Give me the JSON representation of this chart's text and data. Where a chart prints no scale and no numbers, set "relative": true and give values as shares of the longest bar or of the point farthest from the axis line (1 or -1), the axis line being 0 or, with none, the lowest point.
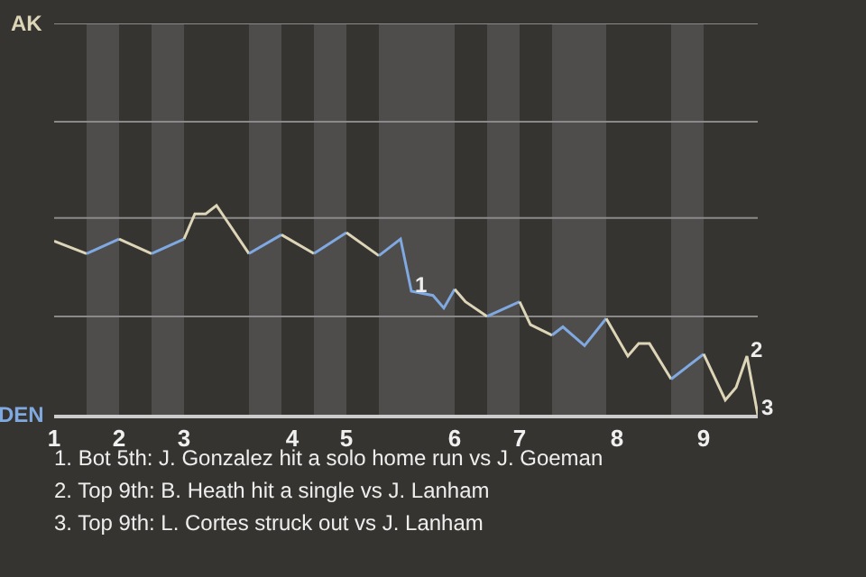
{
  "chart_data": {
    "type": "line",
    "relative": true,
    "marker": "none",
    "line_style": "solid",
    "categories": [
      "1",
      null,
      null,
      null,
      null,
      null,
      "2",
      null,
      null,
      null,
      null,
      null,
      "3",
      null,
      null,
      null,
      null,
      null,
      null,
      null,
      null,
      null,
      "4",
      null,
      null,
      null,
      null,
      "5",
      null,
      null,
      null,
      null,
      null,
      null,
      null,
      null,
      null,
      "6",
      null,
      null,
      null,
      null,
      null,
      "7",
      null,
      null,
      null,
      null,
      null,
      null,
      null,
      null,
      "8",
      null,
      null,
      null,
      null,
      null,
      null,
      null,
      "9",
      null,
      null,
      null,
      null,
      null
    ],
    "series": [
      {
        "color": "#ddd5b8",
        "values": [
          0.83,
          null,
          null,
          0.77,
          null,
          null,
          null,
          null,
          null,
          null,
          null,
          null,
          null,
          null,
          null,
          null,
          null,
          null,
          null,
          null,
          null,
          null,
          null,
          null,
          null,
          null,
          null,
          null,
          null,
          null,
          null,
          null,
          null,
          null,
          null,
          null,
          null,
          null,
          null,
          null,
          null,
          null,
          null,
          null,
          null,
          null,
          null,
          null,
          null,
          null,
          null,
          null,
          null,
          null,
          null,
          null,
          null,
          null,
          null,
          null,
          null,
          null,
          null,
          null,
          null,
          null
        ]
      },
      {
        "color": "#7fa9e0",
        "values": [
          null,
          null,
          null,
          0.77,
          null,
          null,
          0.84,
          null,
          null,
          null,
          null,
          null,
          null,
          null,
          null,
          null,
          null,
          null,
          null,
          null,
          null,
          null,
          null,
          null,
          null,
          null,
          null,
          null,
          null,
          null,
          null,
          null,
          null,
          null,
          null,
          null,
          null,
          null,
          null,
          null,
          null,
          null,
          null,
          null,
          null,
          null,
          null,
          null,
          null,
          null,
          null,
          null,
          null,
          null,
          null,
          null,
          null,
          null,
          null,
          null,
          null,
          null,
          null,
          null,
          null,
          null
        ]
      },
      {
        "color": "#ddd5b8",
        "values": [
          null,
          null,
          null,
          null,
          null,
          null,
          0.84,
          null,
          null,
          0.77,
          null,
          null,
          null,
          null,
          null,
          null,
          null,
          null,
          null,
          null,
          null,
          null,
          null,
          null,
          null,
          null,
          null,
          null,
          null,
          null,
          null,
          null,
          null,
          null,
          null,
          null,
          null,
          null,
          null,
          null,
          null,
          null,
          null,
          null,
          null,
          null,
          null,
          null,
          null,
          null,
          null,
          null,
          null,
          null,
          null,
          null,
          null,
          null,
          null,
          null,
          null,
          null,
          null,
          null,
          null,
          null
        ]
      },
      {
        "color": "#7fa9e0",
        "values": [
          null,
          null,
          null,
          null,
          null,
          null,
          null,
          null,
          null,
          0.77,
          null,
          null,
          0.84,
          null,
          null,
          null,
          null,
          null,
          null,
          null,
          null,
          null,
          null,
          null,
          null,
          null,
          null,
          null,
          null,
          null,
          null,
          null,
          null,
          null,
          null,
          null,
          null,
          null,
          null,
          null,
          null,
          null,
          null,
          null,
          null,
          null,
          null,
          null,
          null,
          null,
          null,
          null,
          null,
          null,
          null,
          null,
          null,
          null,
          null,
          null,
          null,
          null,
          null,
          null,
          null,
          null
        ]
      },
      {
        "color": "#ddd5b8",
        "values": [
          null,
          null,
          null,
          null,
          null,
          null,
          null,
          null,
          null,
          null,
          null,
          null,
          0.84,
          0.96,
          0.96,
          1,
          null,
          null,
          0.77,
          null,
          null,
          null,
          null,
          null,
          null,
          null,
          null,
          null,
          null,
          null,
          null,
          null,
          null,
          null,
          null,
          null,
          null,
          null,
          null,
          null,
          null,
          null,
          null,
          null,
          null,
          null,
          null,
          null,
          null,
          null,
          null,
          null,
          null,
          null,
          null,
          null,
          null,
          null,
          null,
          null,
          null,
          null,
          null,
          null,
          null,
          null
        ]
      },
      {
        "color": "#7fa9e0",
        "values": [
          null,
          null,
          null,
          null,
          null,
          null,
          null,
          null,
          null,
          null,
          null,
          null,
          null,
          null,
          null,
          null,
          null,
          null,
          0.77,
          null,
          null,
          0.86,
          null,
          null,
          null,
          null,
          null,
          null,
          null,
          null,
          null,
          null,
          null,
          null,
          null,
          null,
          null,
          null,
          null,
          null,
          null,
          null,
          null,
          null,
          null,
          null,
          null,
          null,
          null,
          null,
          null,
          null,
          null,
          null,
          null,
          null,
          null,
          null,
          null,
          null,
          null,
          null,
          null,
          null,
          null,
          null
        ]
      },
      {
        "color": "#ddd5b8",
        "values": [
          null,
          null,
          null,
          null,
          null,
          null,
          null,
          null,
          null,
          null,
          null,
          null,
          null,
          null,
          null,
          null,
          null,
          null,
          null,
          null,
          null,
          0.86,
          null,
          null,
          0.77,
          null,
          null,
          null,
          null,
          null,
          null,
          null,
          null,
          null,
          null,
          null,
          null,
          null,
          null,
          null,
          null,
          null,
          null,
          null,
          null,
          null,
          null,
          null,
          null,
          null,
          null,
          null,
          null,
          null,
          null,
          null,
          null,
          null,
          null,
          null,
          null,
          null,
          null,
          null,
          null,
          null
        ]
      },
      {
        "color": "#7fa9e0",
        "values": [
          null,
          null,
          null,
          null,
          null,
          null,
          null,
          null,
          null,
          null,
          null,
          null,
          null,
          null,
          null,
          null,
          null,
          null,
          null,
          null,
          null,
          null,
          null,
          null,
          0.77,
          null,
          null,
          0.87,
          null,
          null,
          null,
          null,
          null,
          null,
          null,
          null,
          null,
          null,
          null,
          null,
          null,
          null,
          null,
          null,
          null,
          null,
          null,
          null,
          null,
          null,
          null,
          null,
          null,
          null,
          null,
          null,
          null,
          null,
          null,
          null,
          null,
          null,
          null,
          null,
          null,
          null
        ]
      },
      {
        "color": "#ddd5b8",
        "values": [
          null,
          null,
          null,
          null,
          null,
          null,
          null,
          null,
          null,
          null,
          null,
          null,
          null,
          null,
          null,
          null,
          null,
          null,
          null,
          null,
          null,
          null,
          null,
          null,
          null,
          null,
          null,
          0.87,
          null,
          null,
          0.76,
          null,
          null,
          null,
          null,
          null,
          null,
          null,
          null,
          null,
          null,
          null,
          null,
          null,
          null,
          null,
          null,
          null,
          null,
          null,
          null,
          null,
          null,
          null,
          null,
          null,
          null,
          null,
          null,
          null,
          null,
          null,
          null,
          null,
          null,
          null
        ]
      },
      {
        "color": "#7fa9e0",
        "values": [
          null,
          null,
          null,
          null,
          null,
          null,
          null,
          null,
          null,
          null,
          null,
          null,
          null,
          null,
          null,
          null,
          null,
          null,
          null,
          null,
          null,
          null,
          null,
          null,
          null,
          null,
          null,
          null,
          null,
          null,
          0.76,
          null,
          0.84,
          0.59,
          null,
          0.57,
          0.51,
          0.6,
          null,
          null,
          null,
          null,
          null,
          null,
          null,
          null,
          null,
          null,
          null,
          null,
          null,
          null,
          null,
          null,
          null,
          null,
          null,
          null,
          null,
          null,
          null,
          null,
          null,
          null,
          null,
          null
        ]
      },
      {
        "color": "#ddd5b8",
        "values": [
          null,
          null,
          null,
          null,
          null,
          null,
          null,
          null,
          null,
          null,
          null,
          null,
          null,
          null,
          null,
          null,
          null,
          null,
          null,
          null,
          null,
          null,
          null,
          null,
          null,
          null,
          null,
          null,
          null,
          null,
          null,
          null,
          null,
          null,
          null,
          null,
          null,
          0.6,
          0.54,
          null,
          0.47,
          null,
          null,
          null,
          null,
          null,
          null,
          null,
          null,
          null,
          null,
          null,
          null,
          null,
          null,
          null,
          null,
          null,
          null,
          null,
          null,
          null,
          null,
          null,
          null,
          null
        ]
      },
      {
        "color": "#7fa9e0",
        "values": [
          null,
          null,
          null,
          null,
          null,
          null,
          null,
          null,
          null,
          null,
          null,
          null,
          null,
          null,
          null,
          null,
          null,
          null,
          null,
          null,
          null,
          null,
          null,
          null,
          null,
          null,
          null,
          null,
          null,
          null,
          null,
          null,
          null,
          null,
          null,
          null,
          null,
          null,
          null,
          null,
          0.47,
          null,
          null,
          0.54,
          null,
          null,
          null,
          null,
          null,
          null,
          null,
          null,
          null,
          null,
          null,
          null,
          null,
          null,
          null,
          null,
          null,
          null,
          null,
          null,
          null,
          null
        ]
      },
      {
        "color": "#ddd5b8",
        "values": [
          null,
          null,
          null,
          null,
          null,
          null,
          null,
          null,
          null,
          null,
          null,
          null,
          null,
          null,
          null,
          null,
          null,
          null,
          null,
          null,
          null,
          null,
          null,
          null,
          null,
          null,
          null,
          null,
          null,
          null,
          null,
          null,
          null,
          null,
          null,
          null,
          null,
          null,
          null,
          null,
          null,
          null,
          null,
          0.54,
          0.43,
          null,
          0.38,
          null,
          null,
          null,
          null,
          null,
          null,
          null,
          null,
          null,
          null,
          null,
          null,
          null,
          null,
          null,
          null,
          null,
          null,
          null
        ]
      },
      {
        "color": "#7fa9e0",
        "values": [
          null,
          null,
          null,
          null,
          null,
          null,
          null,
          null,
          null,
          null,
          null,
          null,
          null,
          null,
          null,
          null,
          null,
          null,
          null,
          null,
          null,
          null,
          null,
          null,
          null,
          null,
          null,
          null,
          null,
          null,
          null,
          null,
          null,
          null,
          null,
          null,
          null,
          null,
          null,
          null,
          null,
          null,
          null,
          null,
          null,
          null,
          0.38,
          0.42,
          null,
          0.33,
          null,
          0.46,
          null,
          null,
          null,
          null,
          null,
          null,
          null,
          null,
          null,
          null,
          null,
          null,
          null,
          null
        ]
      },
      {
        "color": "#ddd5b8",
        "values": [
          null,
          null,
          null,
          null,
          null,
          null,
          null,
          null,
          null,
          null,
          null,
          null,
          null,
          null,
          null,
          null,
          null,
          null,
          null,
          null,
          null,
          null,
          null,
          null,
          null,
          null,
          null,
          null,
          null,
          null,
          null,
          null,
          null,
          null,
          null,
          null,
          null,
          null,
          null,
          null,
          null,
          null,
          null,
          null,
          null,
          null,
          null,
          null,
          null,
          null,
          null,
          0.46,
          null,
          0.28,
          0.34,
          0.34,
          null,
          0.17,
          null,
          null,
          null,
          null,
          null,
          null,
          null,
          null
        ]
      },
      {
        "color": "#7fa9e0",
        "values": [
          null,
          null,
          null,
          null,
          null,
          null,
          null,
          null,
          null,
          null,
          null,
          null,
          null,
          null,
          null,
          null,
          null,
          null,
          null,
          null,
          null,
          null,
          null,
          null,
          null,
          null,
          null,
          null,
          null,
          null,
          null,
          null,
          null,
          null,
          null,
          null,
          null,
          null,
          null,
          null,
          null,
          null,
          null,
          null,
          null,
          null,
          null,
          null,
          null,
          null,
          null,
          null,
          null,
          null,
          null,
          null,
          null,
          0.17,
          null,
          null,
          0.29,
          null,
          null,
          null,
          null,
          null
        ]
      },
      {
        "color": "#ddd5b8",
        "values": [
          null,
          null,
          null,
          null,
          null,
          null,
          null,
          null,
          null,
          null,
          null,
          null,
          null,
          null,
          null,
          null,
          null,
          null,
          null,
          null,
          null,
          null,
          null,
          null,
          null,
          null,
          null,
          null,
          null,
          null,
          null,
          null,
          null,
          null,
          null,
          null,
          null,
          null,
          null,
          null,
          null,
          null,
          null,
          null,
          null,
          null,
          null,
          null,
          null,
          null,
          null,
          null,
          null,
          null,
          null,
          null,
          null,
          null,
          null,
          null,
          0.29,
          null,
          0.07,
          0.13,
          0.28,
          0
        ]
      }
    ],
    "ref_lines": [
      {
        "axis": "y",
        "value": 0.47,
        "color": "#8a8a8a"
      },
      {
        "axis": "y",
        "value": 0.94,
        "color": "#8a8a8a"
      },
      {
        "axis": "y",
        "value": 1.4,
        "color": "#8a8a8a"
      },
      {
        "axis": "y",
        "value": 1.87,
        "color": "#8a8a8a"
      }
    ],
    "annotations": [
      "AK",
      "DEN",
      {
        "text": "1",
        "y": 0.59
      },
      {
        "text": "2",
        "y": 0.28
      },
      "3",
      "1. Bot 5th: J. Gonzalez hit a solo home run vs J. Goeman",
      "2. Top 9th: B. Heath hit a single vs J. Lanham",
      "3. Top 9th: L. Cortes struck out vs J. Lanham"
    ]
  }
}
